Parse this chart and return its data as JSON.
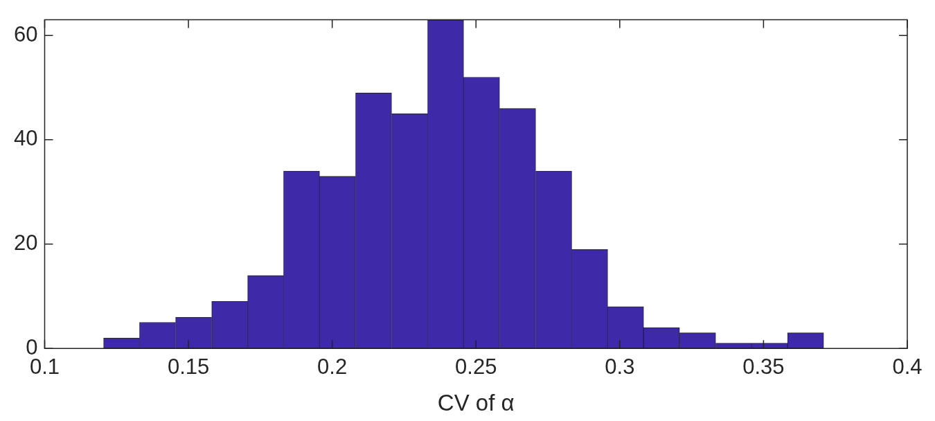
{
  "chart_data": {
    "type": "histogram",
    "xlabel": "CV of α",
    "bins": [
      0.1205,
      0.133,
      0.1455,
      0.1581,
      0.1706,
      0.1831,
      0.1956,
      0.2081,
      0.2207,
      0.2332,
      0.2457,
      0.2582,
      0.2708,
      0.2833,
      0.2958,
      0.3083,
      0.3208,
      0.3334,
      0.3459,
      0.3584,
      0.3709
    ],
    "values": [
      2,
      5,
      6,
      9,
      14,
      34,
      33,
      49,
      45,
      63,
      52,
      46,
      34,
      19,
      8,
      4,
      3,
      1,
      1,
      3
    ],
    "color": "#3e29a8",
    "xlim": [
      0.1,
      0.4
    ],
    "xticks": [
      0.1,
      0.15,
      0.2,
      0.25,
      0.3,
      0.35,
      0.4
    ],
    "ylim": [
      0,
      63
    ],
    "yticks": [
      0,
      20,
      40,
      60
    ],
    "grid": false
  }
}
